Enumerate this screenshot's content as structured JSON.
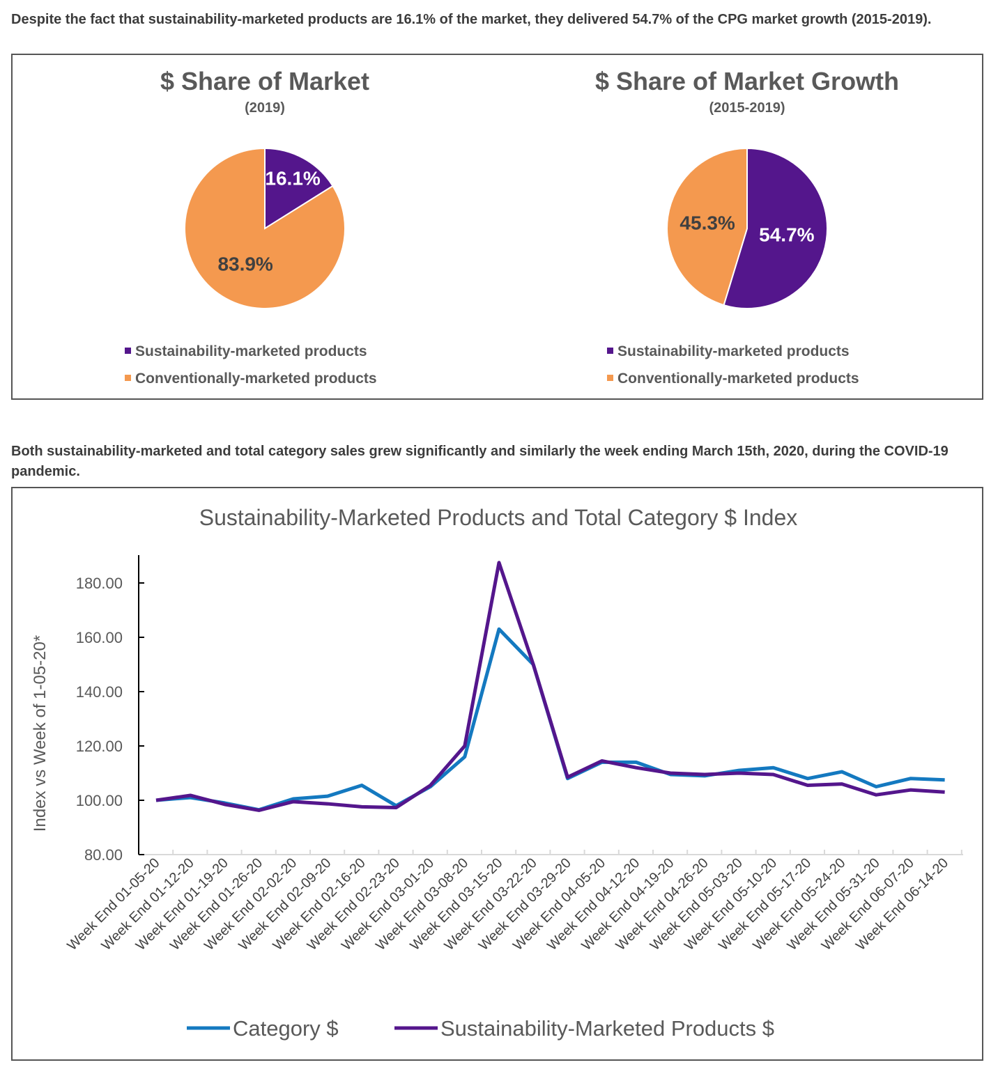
{
  "caption1": "Despite the fact that sustainability-marketed products are 16.1% of the market, they delivered 54.7% of the CPG market growth (2015-2019).",
  "caption2": "Both sustainability-marketed and total category sales grew significantly and similarly the week ending March 15th, 2020, during the COVID-19 pandemic.",
  "colors": {
    "sustainability": "#54168c",
    "conventional": "#f4994f",
    "category_line": "#1479c0",
    "sustainability_line": "#54168c"
  },
  "chart_data": [
    {
      "type": "pie",
      "title": "$ Share of Market",
      "subtitle": "(2019)",
      "slices": [
        {
          "name": "Sustainability-marketed products",
          "value": 16.1,
          "label": "16.1%"
        },
        {
          "name": "Conventionally-marketed products",
          "value": 83.9,
          "label": "83.9%"
        }
      ]
    },
    {
      "type": "pie",
      "title": "$ Share of Market Growth",
      "subtitle": "(2015-2019)",
      "slices": [
        {
          "name": "Sustainability-marketed products",
          "value": 54.7,
          "label": "54.7%"
        },
        {
          "name": "Conventionally-marketed products",
          "value": 45.3,
          "label": "45.3%"
        }
      ]
    },
    {
      "type": "line",
      "title": "Sustainability-Marketed Products and Total Category $ Index",
      "ylabel": "Index vs Week of 1-05-20*",
      "xlabel": "",
      "ylim": [
        80,
        190
      ],
      "yticks": [
        "80.00",
        "100.00",
        "120.00",
        "140.00",
        "160.00",
        "180.00"
      ],
      "legend": "bottom",
      "grid": false,
      "categories": [
        "Week End 01-05-20",
        "Week End 01-12-20",
        "Week End 01-19-20",
        "Week End 01-26-20",
        "Week End 02-02-20",
        "Week End 02-09-20",
        "Week End 02-16-20",
        "Week End 02-23-20",
        "Week End 03-01-20",
        "Week End 03-08-20",
        "Week End 03-15-20",
        "Week End 03-22-20",
        "Week End 03-29-20",
        "Week End 04-05-20",
        "Week End 04-12-20",
        "Week End 04-19-20",
        "Week End 04-26-20",
        "Week End 05-03-20",
        "Week End 05-10-20",
        "Week End 05-17-20",
        "Week End 05-24-20",
        "Week End 05-31-20",
        "Week End 06-07-20",
        "Week End 06-14-20"
      ],
      "series": [
        {
          "name": "Category $",
          "values": [
            100,
            101,
            99,
            96.5,
            100.5,
            101.5,
            105.5,
            98,
            105,
            116,
            163,
            150,
            108,
            114,
            114,
            109.5,
            109,
            111,
            112,
            108,
            110.5,
            105,
            108,
            107.5
          ]
        },
        {
          "name": "Sustainability-Marketed Products $",
          "values": [
            100,
            101.8,
            98.5,
            96.3,
            99.5,
            98.7,
            97.6,
            97.3,
            105.5,
            120,
            187.5,
            150,
            108.5,
            114.5,
            112,
            110,
            109.5,
            110,
            109.5,
            105.5,
            106,
            102,
            103.8,
            103
          ]
        }
      ]
    }
  ]
}
